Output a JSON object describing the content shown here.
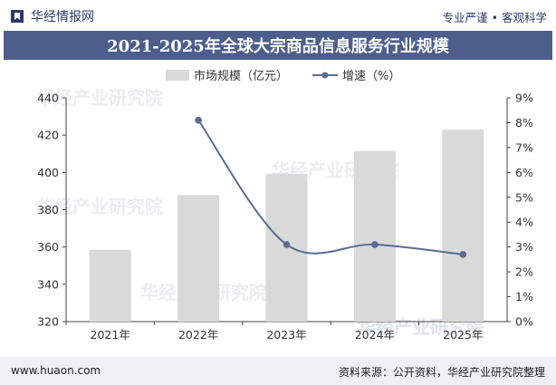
{
  "header": {
    "brand_name": "华经情报网",
    "slogan": "专业严谨 • 客观科学",
    "brand_icon": "bookmark-logo-icon"
  },
  "watermark": "华经产业研究院",
  "footer": {
    "website": "www.huaon.com",
    "source": "资料来源：公开资料，华经产业研究院整理"
  },
  "colors": {
    "title_band": "#4d5e8c",
    "bar": "#d9d9d9",
    "line": "#5a6b94",
    "footer_bg": "#eef0f5"
  },
  "chart_data": {
    "type": "bar",
    "title": "2021-2025年全球大宗商品信息服务行业规模",
    "categories": [
      "2021年",
      "2022年",
      "2023年",
      "2024年",
      "2025年"
    ],
    "series": [
      {
        "name": "市场规模（亿元）",
        "type": "bar",
        "axis": "left",
        "values": [
          358.5,
          387.9,
          399.3,
          411.5,
          422.9
        ]
      },
      {
        "name": "增速（%）",
        "type": "line",
        "axis": "right",
        "values": [
          null,
          8.1,
          3.1,
          3.1,
          2.7
        ]
      }
    ],
    "y_left": {
      "min": 320,
      "max": 440,
      "ticks": [
        "320",
        "340",
        "360",
        "380",
        "400",
        "420",
        "440"
      ]
    },
    "y_right": {
      "min": 0,
      "max": 9,
      "ticks": [
        "0%",
        "1%",
        "2%",
        "3%",
        "4%",
        "5%",
        "6%",
        "7%",
        "8%",
        "9%"
      ]
    },
    "legend_position": "top-center",
    "grid": false
  }
}
